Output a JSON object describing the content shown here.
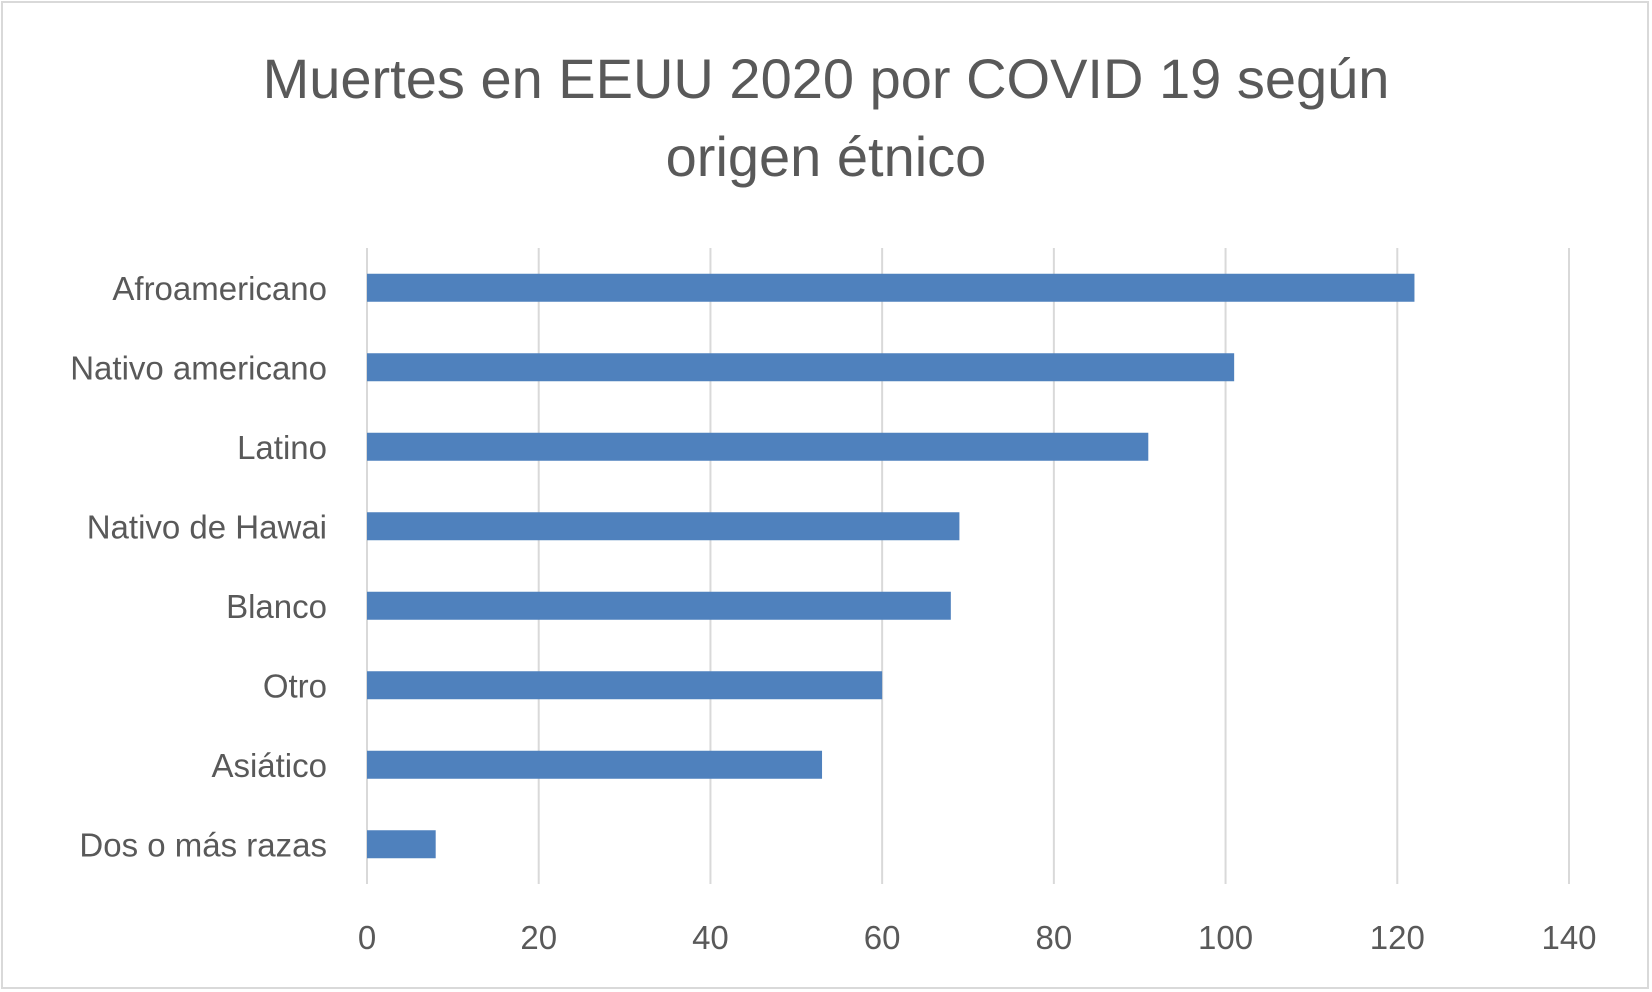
{
  "chart_data": {
    "type": "bar",
    "orientation": "horizontal",
    "title": "Muertes en EEUU 2020 por COVID 19 según origen étnico",
    "title_lines": [
      "Muertes en EEUU 2020 por COVID 19 según",
      "origen étnico"
    ],
    "categories": [
      "Afroamericano",
      "Nativo americano",
      "Latino",
      "Nativo de Hawai",
      "Blanco",
      "Otro",
      "Asiático",
      "Dos o más razas"
    ],
    "values": [
      122,
      101,
      91,
      69,
      68,
      60,
      53,
      8
    ],
    "xlim": [
      0,
      140
    ],
    "xticks": [
      "0",
      "20",
      "40",
      "60",
      "80",
      "100",
      "120",
      "140"
    ],
    "grid": "vertical",
    "legend": "none",
    "bar_color": "#4f81bd",
    "grid_color": "#d9d9d9",
    "text_color": "#595959"
  }
}
